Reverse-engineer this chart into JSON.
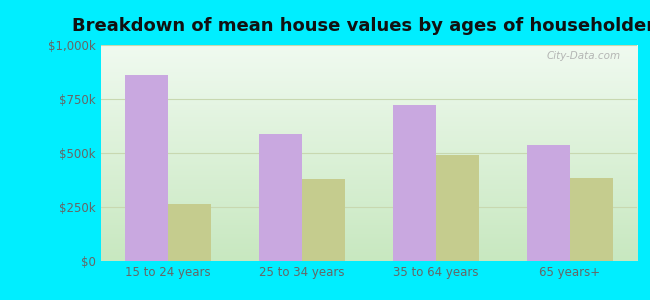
{
  "title": "Breakdown of mean house values by ages of householders",
  "categories": [
    "15 to 24 years",
    "25 to 34 years",
    "35 to 64 years",
    "65 years+"
  ],
  "leesburg": [
    860000,
    590000,
    720000,
    535000
  ],
  "virginia": [
    265000,
    380000,
    490000,
    385000
  ],
  "leesburg_color": "#c9a8e0",
  "virginia_color": "#c5cc8e",
  "ylim": [
    0,
    1000000
  ],
  "yticks": [
    0,
    250000,
    500000,
    750000,
    1000000
  ],
  "ytick_labels": [
    "$0",
    "$250k",
    "$500k",
    "$750k",
    "$1,000k"
  ],
  "background_outer": "#00eeff",
  "background_plot_top": "#e8f5e0",
  "background_plot_bottom": "#d0f0d8",
  "grid_color": "#c8d8b0",
  "title_fontsize": 13,
  "tick_fontsize": 8.5,
  "legend_fontsize": 9.5,
  "bar_width": 0.32,
  "watermark": "City-Data.com"
}
